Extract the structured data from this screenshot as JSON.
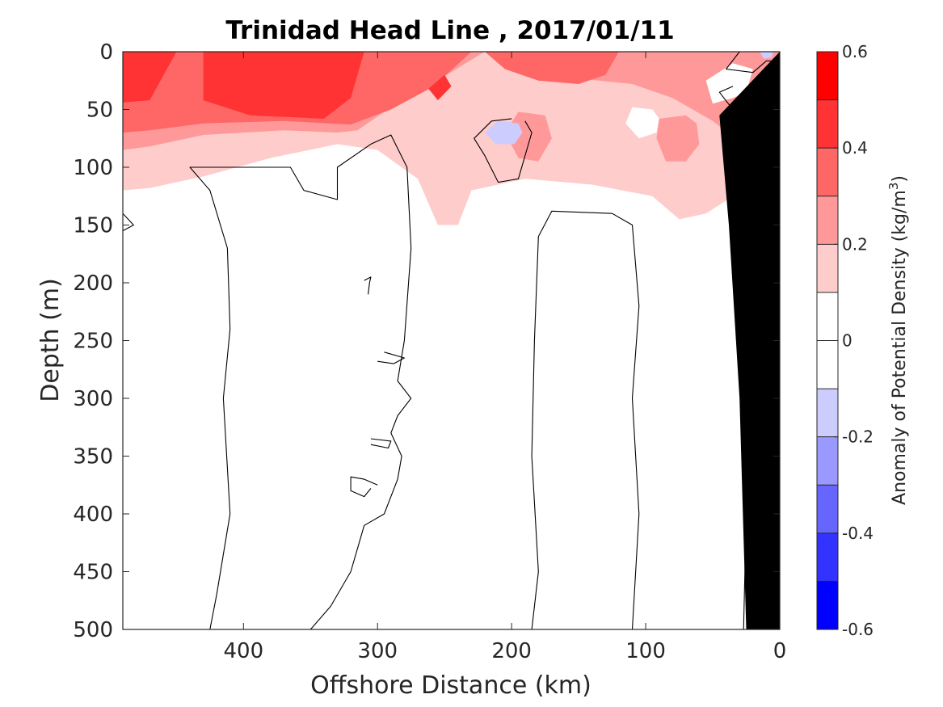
{
  "chart_data": {
    "type": "heatmap",
    "title": "Trinidad Head Line , 2017/01/11",
    "xlabel": "Offshore Distance (km)",
    "ylabel": "Depth (m)",
    "colorbar_label_main": "Anomaly of Potential Density (kg/m",
    "colorbar_label_sup": "3",
    "colorbar_label_close": ")",
    "xlim": [
      490,
      0
    ],
    "ylim": [
      0,
      500
    ],
    "y_reversed": true,
    "x_reversed": true,
    "xticks": [
      400,
      300,
      200,
      100,
      0
    ],
    "xtick_labels": [
      "400",
      "300",
      "200",
      "100",
      "0"
    ],
    "yticks": [
      0,
      50,
      100,
      150,
      200,
      250,
      300,
      350,
      400,
      450,
      500
    ],
    "ytick_labels": [
      "0",
      "50",
      "100",
      "150",
      "200",
      "250",
      "300",
      "350",
      "400",
      "450",
      "500"
    ],
    "clim": [
      -0.6,
      0.6
    ],
    "colorbar_levels": [
      -0.6,
      -0.5,
      -0.4,
      -0.3,
      -0.2,
      -0.1,
      0,
      0.1,
      0.2,
      0.3,
      0.4,
      0.5,
      0.6
    ],
    "colorbar_colors": [
      "#0000ff",
      "#3333ff",
      "#6666ff",
      "#9999ff",
      "#ccccff",
      "#ffffff",
      "#ffffff",
      "#ffcccc",
      "#ff9999",
      "#ff6666",
      "#ff3333",
      "#ff0000"
    ],
    "colorbar_ticks": [
      0.6,
      0.4,
      0.2,
      0,
      -0.2,
      -0.4,
      -0.6
    ],
    "colorbar_tick_labels": [
      "0.6",
      "0.4",
      "0.2",
      "0",
      "-0.2",
      "-0.4",
      "-0.6"
    ],
    "grid": false,
    "regions": [
      {
        "level": 0.1,
        "color": "#ffcccc",
        "points": [
          [
            490,
            0
          ],
          [
            0,
            0
          ],
          [
            0,
            125
          ],
          [
            35,
            125
          ],
          [
            55,
            140
          ],
          [
            75,
            145
          ],
          [
            95,
            125
          ],
          [
            140,
            115
          ],
          [
            190,
            110
          ],
          [
            230,
            120
          ],
          [
            240,
            150
          ],
          [
            255,
            150
          ],
          [
            270,
            110
          ],
          [
            300,
            85
          ],
          [
            330,
            80
          ],
          [
            380,
            92
          ],
          [
            430,
            108
          ],
          [
            470,
            118
          ],
          [
            490,
            120
          ]
        ]
      },
      {
        "level": 0.2,
        "color": "#ff9999",
        "points": [
          [
            490,
            0
          ],
          [
            220,
            0
          ],
          [
            260,
            28
          ],
          [
            295,
            52
          ],
          [
            315,
            68
          ],
          [
            330,
            70
          ],
          [
            370,
            68
          ],
          [
            430,
            72
          ],
          [
            470,
            82
          ],
          [
            490,
            85
          ]
        ]
      },
      {
        "level": 0.2,
        "color": "#ff9999",
        "points": [
          [
            220,
            0
          ],
          [
            0,
            0
          ],
          [
            0,
            65
          ],
          [
            30,
            78
          ],
          [
            50,
            60
          ],
          [
            80,
            40
          ],
          [
            110,
            28
          ],
          [
            160,
            22
          ],
          [
            200,
            12
          ]
        ]
      },
      {
        "level": 0.2,
        "color": "#ff9999",
        "points": [
          [
            175,
            55
          ],
          [
            195,
            52
          ],
          [
            205,
            70
          ],
          [
            195,
            92
          ],
          [
            180,
            95
          ],
          [
            170,
            75
          ]
        ]
      },
      {
        "level": 0.2,
        "color": "#ff9999",
        "points": [
          [
            70,
            55
          ],
          [
            90,
            58
          ],
          [
            92,
            75
          ],
          [
            85,
            95
          ],
          [
            70,
            95
          ],
          [
            60,
            80
          ],
          [
            62,
            62
          ]
        ]
      },
      {
        "level": 0.3,
        "color": "#ff6666",
        "points": [
          [
            490,
            0
          ],
          [
            230,
            0
          ],
          [
            258,
            30
          ],
          [
            290,
            50
          ],
          [
            320,
            63
          ],
          [
            370,
            60
          ],
          [
            430,
            62
          ],
          [
            470,
            68
          ],
          [
            490,
            70
          ]
        ]
      },
      {
        "level": 0.3,
        "color": "#ff6666",
        "points": [
          [
            220,
            0
          ],
          [
            120,
            0
          ],
          [
            130,
            20
          ],
          [
            150,
            28
          ],
          [
            180,
            25
          ],
          [
            205,
            15
          ]
        ]
      },
      {
        "level": 0.3,
        "color": "#ff6666",
        "points": [
          [
            15,
            25
          ],
          [
            5,
            22
          ],
          [
            0,
            60
          ],
          [
            10,
            75
          ],
          [
            22,
            72
          ],
          [
            25,
            45
          ]
        ]
      },
      {
        "level": 0.4,
        "color": "#ff3333",
        "points": [
          [
            430,
            0
          ],
          [
            310,
            0
          ],
          [
            320,
            40
          ],
          [
            340,
            58
          ],
          [
            395,
            55
          ],
          [
            430,
            42
          ]
        ]
      },
      {
        "level": 0.4,
        "color": "#ff3333",
        "points": [
          [
            490,
            0
          ],
          [
            450,
            0
          ],
          [
            470,
            42
          ],
          [
            490,
            44
          ]
        ]
      },
      {
        "level": 0.4,
        "color": "#ff3333",
        "points": [
          [
            250,
            20
          ],
          [
            245,
            30
          ],
          [
            255,
            42
          ],
          [
            262,
            32
          ]
        ]
      },
      {
        "level": 0.4,
        "color": "#ff3333",
        "points": [
          [
            10,
            35
          ],
          [
            2,
            38
          ],
          [
            2,
            65
          ],
          [
            12,
            70
          ],
          [
            15,
            50
          ]
        ]
      },
      {
        "level": 0.5,
        "color": "#ff0000",
        "points": [
          [
            6,
            42
          ],
          [
            3,
            48
          ],
          [
            4,
            58
          ],
          [
            9,
            55
          ]
        ]
      },
      {
        "level": 0.0,
        "color": "#ffffff",
        "points": [
          [
            95,
            50
          ],
          [
            110,
            48
          ],
          [
            115,
            62
          ],
          [
            105,
            75
          ],
          [
            92,
            70
          ],
          [
            90,
            58
          ]
        ]
      },
      {
        "level": 0.0,
        "color": "#ffffff",
        "points": [
          [
            20,
            15
          ],
          [
            35,
            10
          ],
          [
            55,
            25
          ],
          [
            50,
            45
          ],
          [
            35,
            40
          ],
          [
            25,
            35
          ]
        ]
      },
      {
        "level": -0.1,
        "color": "#ccccff",
        "points": [
          [
            195,
            62
          ],
          [
            210,
            60
          ],
          [
            220,
            70
          ],
          [
            212,
            80
          ],
          [
            198,
            80
          ],
          [
            192,
            70
          ]
        ]
      },
      {
        "level": -0.1,
        "color": "#ccccff",
        "points": [
          [
            5,
            0
          ],
          [
            15,
            0
          ],
          [
            12,
            6
          ],
          [
            6,
            5
          ]
        ]
      }
    ],
    "bathymetry": {
      "color": "#000000",
      "points": [
        [
          0,
          0
        ],
        [
          0,
          500
        ],
        [
          25,
          500
        ],
        [
          30,
          300
        ],
        [
          38,
          150
        ],
        [
          45,
          55
        ],
        [
          0,
          0
        ]
      ]
    },
    "contours": [
      {
        "level": 0,
        "points": [
          [
            425,
            500
          ],
          [
            420,
            470
          ],
          [
            410,
            400
          ],
          [
            415,
            300
          ],
          [
            410,
            240
          ],
          [
            412,
            170
          ],
          [
            425,
            120
          ],
          [
            440,
            100
          ],
          [
            365,
            100
          ],
          [
            355,
            120
          ],
          [
            330,
            128
          ],
          [
            330,
            100
          ],
          [
            305,
            80
          ],
          [
            290,
            72
          ],
          [
            278,
            100
          ],
          [
            275,
            170
          ],
          [
            280,
            250
          ],
          [
            285,
            285
          ],
          [
            275,
            300
          ],
          [
            285,
            315
          ],
          [
            290,
            330
          ],
          [
            282,
            350
          ],
          [
            285,
            370
          ],
          [
            295,
            400
          ],
          [
            310,
            410
          ],
          [
            320,
            450
          ],
          [
            335,
            480
          ],
          [
            350,
            500
          ]
        ]
      },
      {
        "level": 0,
        "points": [
          [
            185,
            500
          ],
          [
            180,
            450
          ],
          [
            185,
            350
          ],
          [
            183,
            250
          ],
          [
            180,
            160
          ],
          [
            170,
            138
          ],
          [
            125,
            140
          ],
          [
            110,
            150
          ],
          [
            105,
            220
          ],
          [
            110,
            300
          ],
          [
            105,
            400
          ],
          [
            110,
            500
          ]
        ]
      },
      {
        "level": 0,
        "points": [
          [
            200,
            58
          ],
          [
            215,
            60
          ],
          [
            228,
            75
          ],
          [
            220,
            90
          ],
          [
            210,
            113
          ],
          [
            195,
            110
          ],
          [
            190,
            90
          ],
          [
            185,
            70
          ],
          [
            190,
            60
          ]
        ]
      },
      {
        "level": 0,
        "points": [
          [
            35,
            30
          ],
          [
            45,
            35
          ],
          [
            35,
            50
          ],
          [
            28,
            44
          ]
        ]
      },
      {
        "level": 0,
        "points": [
          [
            490,
            140
          ],
          [
            482,
            150
          ],
          [
            490,
            155
          ]
        ]
      },
      {
        "level": 0,
        "points": [
          [
            305,
            335
          ],
          [
            290,
            337
          ],
          [
            292,
            343
          ],
          [
            305,
            340
          ]
        ]
      },
      {
        "level": 0,
        "points": [
          [
            295,
            260
          ],
          [
            280,
            265
          ],
          [
            288,
            270
          ],
          [
            300,
            268
          ]
        ]
      },
      {
        "level": 0,
        "points": [
          [
            300,
            375
          ],
          [
            310,
            370
          ],
          [
            320,
            368
          ],
          [
            320,
            380
          ],
          [
            310,
            385
          ],
          [
            305,
            378
          ]
        ]
      },
      {
        "level": 0,
        "points": [
          [
            310,
            198
          ],
          [
            305,
            195
          ],
          [
            306,
            200
          ],
          [
            307,
            210
          ]
        ]
      },
      {
        "level": 0,
        "points": [
          [
            30,
            200
          ],
          [
            28,
            220
          ],
          [
            25,
            260
          ],
          [
            28,
            300
          ],
          [
            25,
            400
          ],
          [
            27,
            500
          ]
        ]
      },
      {
        "level": 0,
        "points": [
          [
            30,
            0
          ],
          [
            40,
            15
          ],
          [
            20,
            18
          ],
          [
            10,
            8
          ],
          [
            0,
            8
          ]
        ]
      }
    ]
  }
}
